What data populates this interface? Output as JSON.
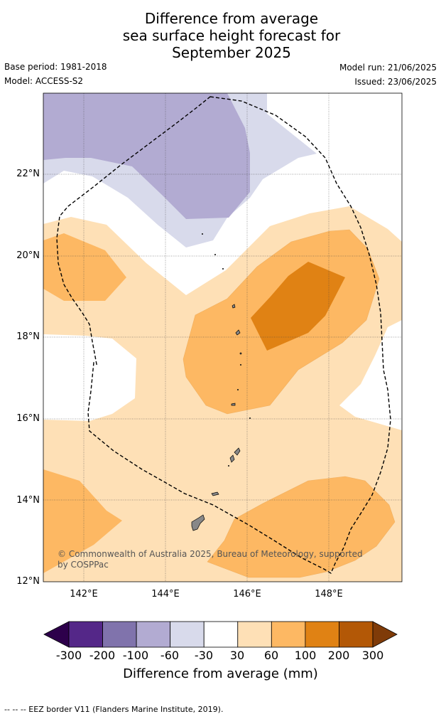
{
  "title": [
    "Difference from average",
    "sea surface height forecast for",
    "September 2025"
  ],
  "meta": {
    "base_period": "Base period: 1981-2018",
    "model": "Model: ACCESS-S2",
    "model_run": "Model run: 21/06/2025",
    "issued": "Issued: 23/06/2025"
  },
  "map": {
    "lat_ticks": [
      "22°N",
      "20°N",
      "18°N",
      "16°N",
      "14°N",
      "12°N"
    ],
    "lon_ticks": [
      "142°E",
      "144°E",
      "146°E",
      "148°E"
    ],
    "lat_range": [
      12,
      24
    ],
    "lon_range": [
      141,
      149.8
    ],
    "credit": "© Commonwealth of Australia 2025, Bureau of Meteorology, supported by COSPPac"
  },
  "colorbar": {
    "ticks": [
      "-300",
      "-200",
      "-100",
      "-60",
      "-30",
      "30",
      "60",
      "100",
      "200",
      "300"
    ],
    "colors": [
      "#2d004b",
      "#542788",
      "#8073ac",
      "#b2abd2",
      "#d8daeb",
      "#ffffff",
      "#fee0b6",
      "#fdb863",
      "#e08214",
      "#b35806",
      "#7f3b08"
    ],
    "label": "Difference from average (mm)"
  },
  "footer": "--  --  -- EEZ border V11 (Flanders Marine Institute, 2019)."
}
